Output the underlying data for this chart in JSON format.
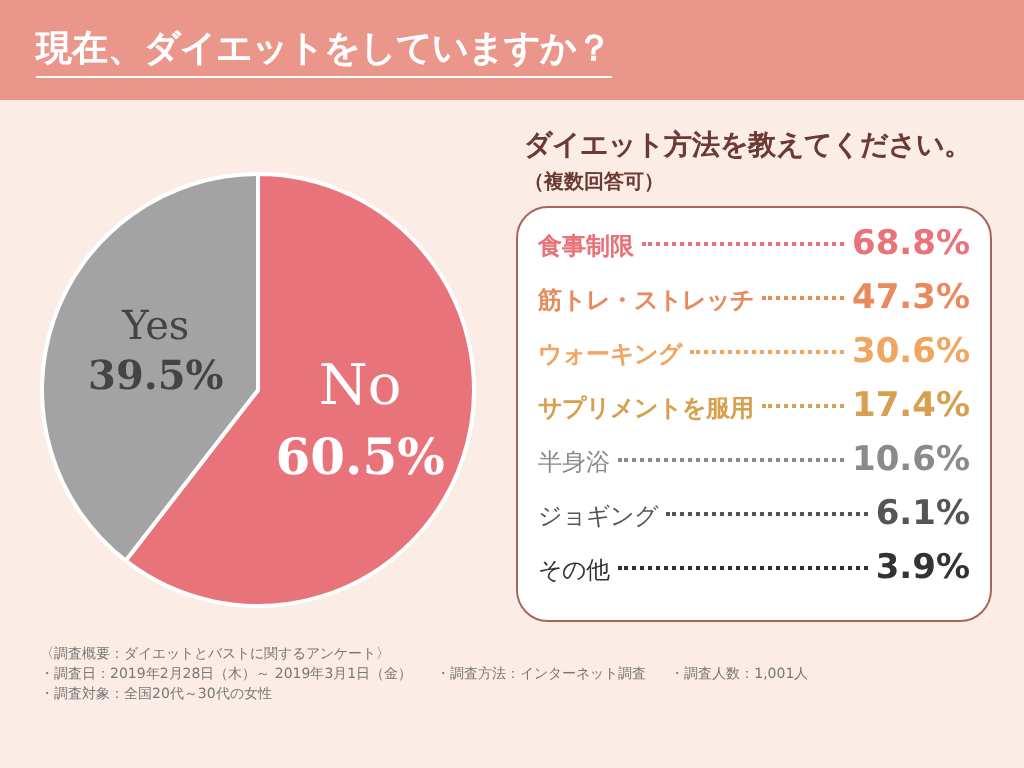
{
  "chart_data": [
    {
      "type": "pie",
      "title": "現在、ダイエットをしていますか？",
      "categories": [
        "No",
        "Yes"
      ],
      "values": [
        60.5,
        39.5
      ],
      "colors": [
        "#e8737a",
        "#a3a3a3"
      ],
      "value_labels": [
        "60.5%",
        "39.5%"
      ],
      "legend": false,
      "annotations": [
        "〈調査概要：ダイエットとバストに関するアンケート〉",
        "・調査日：2019年2月28日（木）～ 2019年3月1日（金）",
        "・調査方法：インターネット調査",
        "・調査人数：1,001人",
        "・調査対象：全国20代～30代の女性"
      ]
    },
    {
      "type": "other",
      "title": "ダイエット方法を教えてください。",
      "subtitle": "（複数回答可）",
      "categories": [
        "食事制限",
        "筋トレ・ストレッチ",
        "ウォーキング",
        "サプリメントを服用",
        "半身浴",
        "ジョギング",
        "その他"
      ],
      "value_labels": [
        "68.8%",
        "47.3%",
        "30.6%",
        "17.4%",
        "10.6%",
        "6.1%",
        "3.9%"
      ]
    }
  ]
}
